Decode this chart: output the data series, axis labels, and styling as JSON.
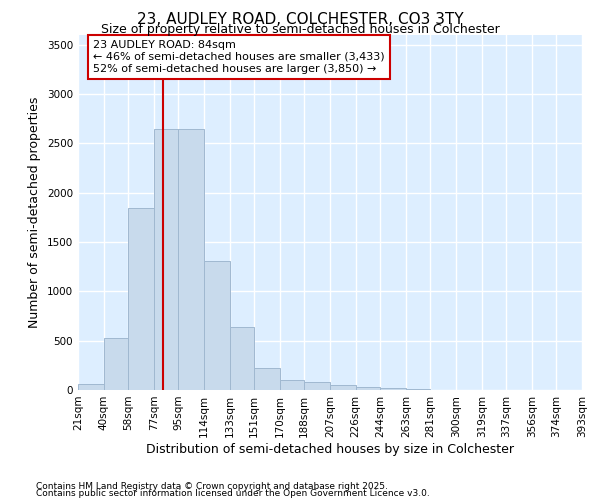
{
  "title": "23, AUDLEY ROAD, COLCHESTER, CO3 3TY",
  "subtitle": "Size of property relative to semi-detached houses in Colchester",
  "xlabel": "Distribution of semi-detached houses by size in Colchester",
  "ylabel": "Number of semi-detached properties",
  "footer_line1": "Contains HM Land Registry data © Crown copyright and database right 2025.",
  "footer_line2": "Contains public sector information licensed under the Open Government Licence v3.0.",
  "annotation_title": "23 AUDLEY ROAD: 84sqm",
  "annotation_line2": "← 46% of semi-detached houses are smaller (3,433)",
  "annotation_line3": "52% of semi-detached houses are larger (3,850) →",
  "bar_color": "#c8daec",
  "bar_edge_color": "#a0b8d0",
  "fig_bg_color": "#ffffff",
  "axes_bg_color": "#ddeeff",
  "grid_color": "#ffffff",
  "red_line_color": "#cc0000",
  "annotation_box_color": "#ffffff",
  "annotation_box_edge": "#cc0000",
  "red_line_x": 84,
  "ylim": [
    0,
    3600
  ],
  "yticks": [
    0,
    500,
    1000,
    1500,
    2000,
    2500,
    3000,
    3500
  ],
  "bin_edges": [
    21,
    40,
    58,
    77,
    95,
    114,
    133,
    151,
    170,
    188,
    207,
    226,
    244,
    263,
    281,
    300,
    319,
    337,
    356,
    374,
    393
  ],
  "bar_values": [
    60,
    525,
    1850,
    2650,
    2650,
    1310,
    640,
    220,
    100,
    85,
    50,
    35,
    20,
    8,
    4,
    1,
    0,
    0,
    0,
    0
  ],
  "x_labels": [
    "21sqm",
    "40sqm",
    "58sqm",
    "77sqm",
    "95sqm",
    "114sqm",
    "133sqm",
    "151sqm",
    "170sqm",
    "188sqm",
    "207sqm",
    "226sqm",
    "244sqm",
    "263sqm",
    "281sqm",
    "300sqm",
    "319sqm",
    "337sqm",
    "356sqm",
    "374sqm",
    "393sqm"
  ],
  "title_fontsize": 11,
  "subtitle_fontsize": 9,
  "axis_label_fontsize": 9,
  "tick_fontsize": 7.5,
  "annotation_fontsize": 8,
  "footer_fontsize": 6.5
}
